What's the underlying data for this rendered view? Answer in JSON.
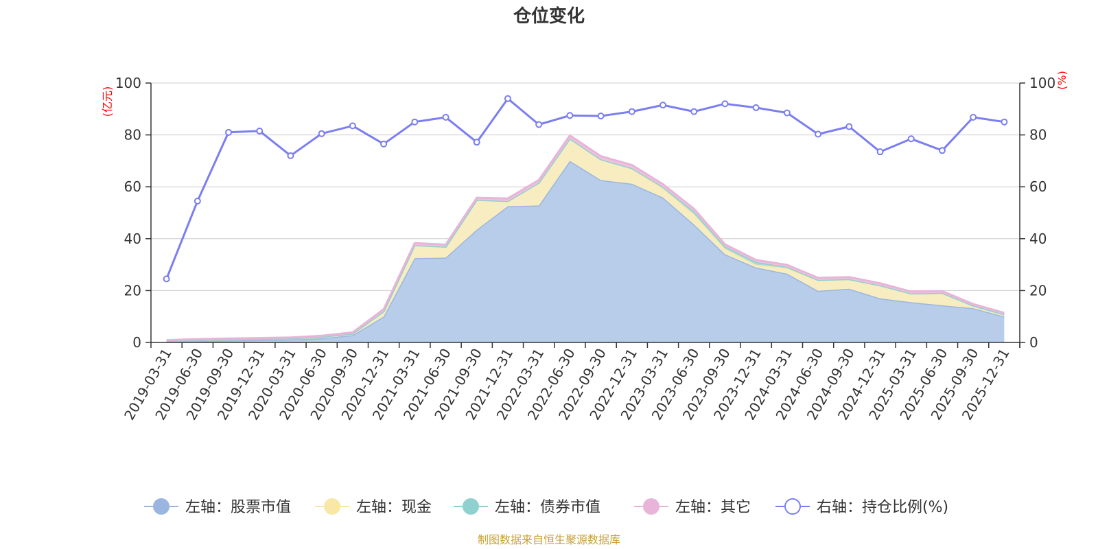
{
  "chart_data": {
    "type": "area",
    "title": "仓位变化",
    "source": "制图数据来自恒生聚源数据库",
    "y_left_unit": "(亿元)",
    "y_right_unit": "(%)",
    "y_left": {
      "min": 0,
      "max": 100,
      "ticks": [
        "0",
        "20",
        "40",
        "60",
        "80",
        "100"
      ]
    },
    "y_right": {
      "min": 0,
      "max": 100,
      "ticks": [
        "0",
        "20",
        "40",
        "60",
        "80",
        "100"
      ]
    },
    "grid": true,
    "legend_position": "bottom",
    "categories": [
      "2019-03-31",
      "2019-06-30",
      "2019-09-30",
      "2019-12-31",
      "2020-03-31",
      "2020-06-30",
      "2020-09-30",
      "2020-12-31",
      "2021-03-31",
      "2021-06-30",
      "2021-09-30",
      "2021-12-31",
      "2022-03-31",
      "2022-06-30",
      "2022-09-30",
      "2022-12-31",
      "2023-03-31",
      "2023-06-30",
      "2023-09-30",
      "2023-12-31",
      "2024-03-31",
      "2024-06-30",
      "2024-09-30",
      "2024-12-31",
      "2025-03-31",
      "2025-06-30",
      "2025-09-30",
      "2025-12-31"
    ],
    "series": [
      {
        "name": "左轴：股票市值",
        "axis": "left",
        "stacked": true,
        "color": "#9ab6e0",
        "fill": "#b8cdea",
        "values": [
          0.3,
          0.5,
          0.7,
          0.9,
          1.1,
          1.6,
          2.8,
          10.0,
          32.5,
          32.7,
          43.5,
          52.5,
          52.8,
          70.0,
          62.6,
          61.2,
          55.9,
          45.5,
          34.0,
          28.9,
          26.5,
          19.9,
          20.7,
          17.0,
          15.5,
          14.3,
          13.2,
          10.0
        ]
      },
      {
        "name": "左轴：现金",
        "axis": "left",
        "stacked": true,
        "color": "#f8e7a6",
        "fill": "#f8edc0",
        "values": [
          0.3,
          0.4,
          0.5,
          0.5,
          0.5,
          0.6,
          0.6,
          2.0,
          5.0,
          4.2,
          11.5,
          2.0,
          8.8,
          8.6,
          8.0,
          6.0,
          3.6,
          4.0,
          2.2,
          1.1,
          2.2,
          4.2,
          3.7,
          5.0,
          3.2,
          4.8,
          1.0,
          0.8
        ]
      },
      {
        "name": "左轴：债券市值",
        "axis": "left",
        "stacked": true,
        "color": "#8fd0d0",
        "fill": "#a8dcdc",
        "values": [
          0.0,
          0.0,
          0.0,
          0.0,
          0.0,
          0.0,
          0.0,
          0.0,
          0.0,
          0.0,
          0.0,
          0.0,
          0.0,
          0.0,
          0.0,
          0.0,
          0.5,
          1.0,
          0.8,
          1.0,
          0.4,
          0.0,
          0.0,
          0.0,
          0.2,
          0.0,
          0.0,
          0.0
        ]
      },
      {
        "name": "左轴：其它",
        "axis": "left",
        "stacked": true,
        "color": "#e8b4d8",
        "fill": "#eec3df",
        "values": [
          0.3,
          0.4,
          0.3,
          0.3,
          0.3,
          0.4,
          0.5,
          0.8,
          0.8,
          0.8,
          0.8,
          1.0,
          1.0,
          1.2,
          1.2,
          1.2,
          1.0,
          1.0,
          0.8,
          0.8,
          0.8,
          0.8,
          0.8,
          0.8,
          0.7,
          0.7,
          0.6,
          0.6
        ]
      },
      {
        "name": "右轴：持仓比例(%)",
        "axis": "right",
        "type": "line",
        "color": "#7b7ef0",
        "values": [
          24.5,
          54.5,
          81.0,
          81.5,
          72.0,
          80.5,
          83.5,
          76.5,
          85.0,
          86.8,
          77.2,
          94.0,
          84.0,
          87.5,
          87.3,
          89.0,
          91.5,
          89.0,
          92.0,
          90.5,
          88.5,
          80.3,
          83.2,
          73.5,
          78.5,
          74.0,
          86.8,
          85.0
        ]
      }
    ]
  }
}
